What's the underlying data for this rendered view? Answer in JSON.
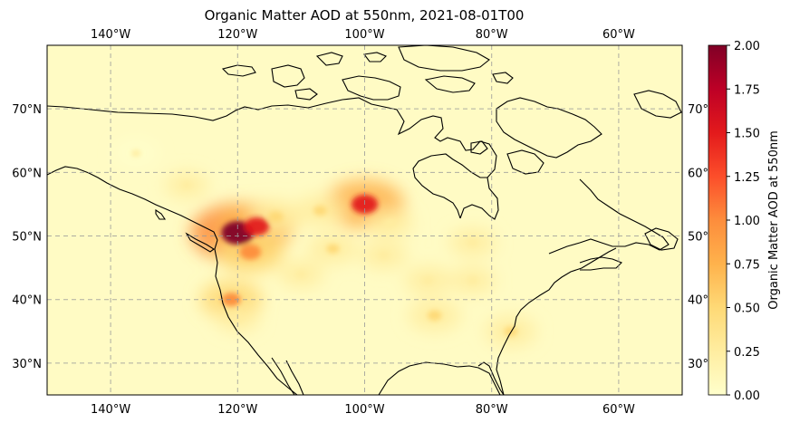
{
  "title": "Organic Matter AOD at 550nm, 2021-08-01T00",
  "map": {
    "lon_range": [
      -150,
      -50
    ],
    "lat_range": [
      25,
      80
    ],
    "gridlines": true,
    "lon_ticks": [
      {
        "value": -140,
        "label": "140°W"
      },
      {
        "value": -120,
        "label": "120°W"
      },
      {
        "value": -100,
        "label": "100°W"
      },
      {
        "value": -80,
        "label": "80°W"
      },
      {
        "value": -60,
        "label": "60°W"
      }
    ],
    "lat_ticks_left": [
      {
        "value": 70,
        "label": "70°N"
      },
      {
        "value": 60,
        "label": "60°N"
      },
      {
        "value": 50,
        "label": "50°N"
      },
      {
        "value": 40,
        "label": "40°N"
      },
      {
        "value": 30,
        "label": "30°N"
      }
    ],
    "lat_ticks_right": [
      {
        "value": 70,
        "label": "70°"
      },
      {
        "value": 60,
        "label": "60°"
      },
      {
        "value": 50,
        "label": "50°"
      },
      {
        "value": 40,
        "label": "40°"
      },
      {
        "value": 30,
        "label": "30°"
      }
    ],
    "smoke_plumes": [
      {
        "lon": -120,
        "lat": 50.5,
        "intensity": 2.0
      },
      {
        "lon": -117,
        "lat": 51.5,
        "intensity": 1.4
      },
      {
        "lon": -118,
        "lat": 47.5,
        "intensity": 1.1
      },
      {
        "lon": -100,
        "lat": 55,
        "intensity": 1.5
      },
      {
        "lon": -114,
        "lat": 53,
        "intensity": 0.6
      },
      {
        "lon": -107,
        "lat": 54,
        "intensity": 0.5
      },
      {
        "lon": -105,
        "lat": 48,
        "intensity": 0.45
      },
      {
        "lon": -97,
        "lat": 47,
        "intensity": 0.35
      },
      {
        "lon": -90,
        "lat": 43,
        "intensity": 0.35
      },
      {
        "lon": -83,
        "lat": 43,
        "intensity": 0.3
      },
      {
        "lon": -89,
        "lat": 37.5,
        "intensity": 0.55
      },
      {
        "lon": -77,
        "lat": 35,
        "intensity": 0.5
      },
      {
        "lon": -121,
        "lat": 40,
        "intensity": 0.9
      },
      {
        "lon": -96,
        "lat": 52,
        "intensity": 0.35
      },
      {
        "lon": -83,
        "lat": 49,
        "intensity": 0.35
      },
      {
        "lon": -128,
        "lat": 58,
        "intensity": 0.25
      },
      {
        "lon": -136,
        "lat": 63,
        "intensity": 0.2
      },
      {
        "lon": -120,
        "lat": 37,
        "intensity": 0.25
      },
      {
        "lon": -110,
        "lat": 44,
        "intensity": 0.3
      }
    ]
  },
  "colorbar": {
    "label": "Organic Matter AOD at 550nm",
    "min": 0.0,
    "max": 2.0,
    "ticks": [
      "0.00",
      "0.25",
      "0.50",
      "0.75",
      "1.00",
      "1.25",
      "1.50",
      "1.75",
      "2.00"
    ],
    "colormap": [
      "#ffffcc",
      "#ffeda0",
      "#fed976",
      "#feb24c",
      "#fd8d3c",
      "#fc4e2a",
      "#e31a1c",
      "#bd0026",
      "#800026"
    ]
  },
  "colors": {
    "background": "#fffbc4",
    "coastline": "#000000",
    "gridline": "#999999"
  }
}
